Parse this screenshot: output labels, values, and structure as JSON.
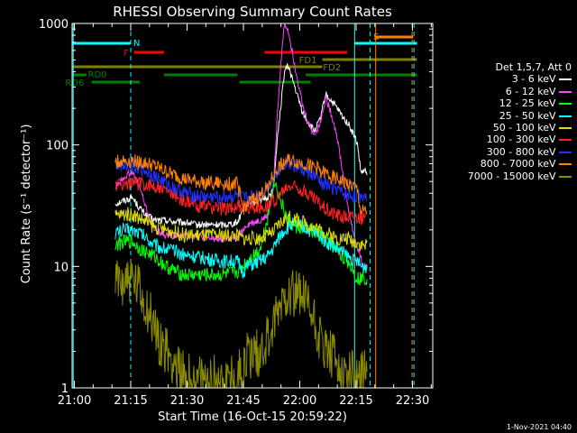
{
  "chart_data": {
    "type": "line",
    "title": "RHESSI Observing Summary Count Rates",
    "xlabel": "Start Time (16-Oct-15 20:59:22)",
    "ylabel": "Count Rate (s⁻¹ detector⁻¹)",
    "yscale": "log",
    "ylim": [
      1,
      1000
    ],
    "xlim_minutes": [
      0,
      96
    ],
    "y_ticks": [
      "1",
      "10",
      "100",
      "1000"
    ],
    "x_ticks": [
      {
        "label": "21:00",
        "t": 0.6
      },
      {
        "label": "21:15",
        "t": 15.6
      },
      {
        "label": "21:30",
        "t": 30.6
      },
      {
        "label": "21:45",
        "t": 45.6
      },
      {
        "label": "22:00",
        "t": 60.6
      },
      {
        "label": "22:15",
        "t": 75.6
      },
      {
        "label": "22:30",
        "t": 90.6
      }
    ],
    "legend_header": "Det 1,5,7, Att 0",
    "data_window": [
      11.5,
      78.5
    ],
    "series": [
      {
        "name": "3 - 6 keV",
        "color": "#ffffff",
        "x": [
          11.5,
          14,
          16,
          18,
          20,
          22,
          25,
          28,
          30,
          33,
          36,
          40,
          44,
          45.5,
          46.5,
          50,
          52,
          53.5,
          54.5,
          55.5,
          56.5,
          57.5,
          58.5,
          60,
          61.5,
          63,
          64.5,
          66,
          67.5,
          69,
          70.5,
          72,
          73.5,
          75,
          76,
          76.8,
          77.5,
          78.5
        ],
        "y": [
          33,
          35,
          37,
          30,
          26,
          24,
          24,
          23,
          23,
          22,
          22,
          22,
          23,
          30,
          33,
          35,
          37,
          42,
          100,
          200,
          400,
          450,
          360,
          250,
          180,
          150,
          130,
          160,
          260,
          230,
          200,
          170,
          150,
          120,
          100,
          60,
          60,
          60
        ]
      },
      {
        "name": "6 - 12 keV",
        "color": "#ff44ff",
        "x": [
          11.5,
          14,
          16,
          18,
          20,
          22,
          25,
          28,
          30,
          33,
          36,
          40,
          44,
          45.5,
          46.5,
          50,
          52,
          53.5,
          54.5,
          55.5,
          56.5,
          57.5,
          58.5,
          60,
          61.5,
          63,
          64.5,
          66,
          67.5,
          69,
          70.5,
          72,
          73.5,
          75,
          76,
          76.8,
          77.5,
          78.5
        ],
        "y": [
          45,
          55,
          60,
          45,
          28,
          20,
          18,
          18,
          18,
          18,
          17,
          17,
          17,
          20,
          22,
          24,
          26,
          40,
          150,
          450,
          1000,
          900,
          600,
          350,
          200,
          150,
          120,
          150,
          250,
          180,
          120,
          60,
          30,
          18,
          14,
          12,
          10,
          10
        ]
      },
      {
        "name": "12 - 25 keV",
        "color": "#00ff00",
        "x": [
          11.5,
          14,
          16,
          18,
          20,
          22,
          25,
          28,
          30,
          33,
          36,
          40,
          44,
          45.5,
          46.5,
          50,
          52,
          53.5,
          54.5,
          55.5,
          56.5,
          57.5,
          58.5,
          60,
          61.5,
          63,
          64.5,
          66,
          67.5,
          69,
          70.5,
          72,
          73.5,
          75,
          76,
          76.8,
          77.5,
          78.5
        ],
        "y": [
          15,
          16,
          16,
          14,
          13,
          12,
          10,
          9,
          8.5,
          8.5,
          8.5,
          8.5,
          9,
          10,
          11,
          14,
          25,
          50,
          45,
          35,
          28,
          24,
          22,
          21,
          20,
          20,
          19,
          18,
          17,
          15,
          14,
          12,
          11,
          9,
          8,
          8,
          8,
          8
        ]
      },
      {
        "name": "25 - 50 keV",
        "color": "#00ffff",
        "x": [
          11.5,
          14,
          16,
          18,
          20,
          22,
          25,
          28,
          30,
          33,
          36,
          40,
          44,
          45.5,
          46.5,
          50,
          52,
          53.5,
          54.5,
          55.5,
          56.5,
          57.5,
          58.5,
          60,
          61.5,
          63,
          64.5,
          66,
          67.5,
          69,
          70.5,
          72,
          73.5,
          75,
          76,
          76.8,
          77.5,
          78.5
        ],
        "y": [
          19,
          20,
          20,
          19,
          17,
          15,
          14,
          13,
          12.5,
          12,
          11.5,
          11,
          11,
          9,
          10,
          11,
          12,
          14,
          16,
          18,
          20,
          21,
          22,
          22,
          21,
          20,
          19,
          18,
          16,
          15,
          14,
          13,
          12,
          11,
          11,
          10,
          10,
          10
        ]
      },
      {
        "name": "50 - 100 keV",
        "color": "#dddd00",
        "x": [
          11.5,
          14,
          16,
          18,
          20,
          22,
          25,
          28,
          30,
          33,
          36,
          40,
          44,
          45.5,
          46.5,
          50,
          52,
          53.5,
          54.5,
          55.5,
          56.5,
          57.5,
          58.5,
          60,
          61.5,
          63,
          64.5,
          66,
          67.5,
          69,
          70.5,
          72,
          73.5,
          75,
          76,
          76.8,
          77.5,
          78.5
        ],
        "y": [
          26,
          27,
          27,
          25,
          23,
          21,
          20,
          19,
          18,
          18,
          18,
          18,
          18,
          17,
          17,
          17,
          18,
          19,
          21,
          23,
          24,
          25,
          25,
          24,
          23,
          22,
          21,
          20,
          19,
          18,
          17,
          17,
          17,
          16,
          16,
          15,
          15,
          15
        ]
      },
      {
        "name": "100 - 300 keV",
        "color": "#ff2020",
        "x": [
          11.5,
          14,
          16,
          18,
          20,
          22,
          25,
          28,
          30,
          33,
          36,
          40,
          44,
          45.5,
          46.5,
          50,
          52,
          53.5,
          54.5,
          55.5,
          56.5,
          57.5,
          58.5,
          60,
          61.5,
          63,
          64.5,
          66,
          67.5,
          69,
          70.5,
          72,
          73.5,
          75,
          76,
          76.8,
          77.5,
          78.5
        ],
        "y": [
          47,
          48,
          48,
          48,
          47,
          46,
          42,
          38,
          34,
          32,
          31,
          30,
          31,
          31,
          31,
          31,
          32,
          34,
          36,
          39,
          42,
          45,
          46,
          45,
          42,
          39,
          36,
          33,
          30,
          28,
          27,
          26,
          26,
          26,
          26,
          25,
          25,
          25
        ]
      },
      {
        "name": "300 - 800 keV",
        "color": "#2030ff",
        "x": [
          11.5,
          14,
          16,
          18,
          20,
          22,
          25,
          28,
          30,
          33,
          36,
          40,
          44,
          45.5,
          46.5,
          50,
          52,
          53.5,
          54.5,
          55.5,
          56.5,
          57.5,
          58.5,
          60,
          61.5,
          63,
          64.5,
          66,
          67.5,
          69,
          70.5,
          72,
          73.5,
          75,
          76,
          76.8,
          77.5,
          78.5
        ],
        "y": [
          68,
          70,
          70,
          65,
          60,
          55,
          48,
          43,
          40,
          38,
          37,
          37,
          38,
          36,
          36,
          40,
          45,
          53,
          60,
          66,
          70,
          71,
          70,
          66,
          62,
          58,
          55,
          50,
          47,
          45,
          43,
          40,
          38,
          38,
          38,
          38,
          38,
          38
        ]
      },
      {
        "name": "800 - 7000 keV",
        "color": "#ff8000",
        "x": [
          11.5,
          14,
          16,
          18,
          20,
          22,
          25,
          28,
          30,
          33,
          36,
          40,
          44,
          45.5,
          46.5,
          50,
          52,
          53.5,
          54.5,
          55.5,
          56.5,
          57.5,
          58.5,
          60,
          61.5,
          63,
          64.5,
          66,
          67.5,
          69,
          70.5,
          72,
          73.5,
          75,
          76,
          76.8,
          77.5,
          78.5
        ],
        "y": [
          72,
          74,
          74,
          72,
          70,
          67,
          60,
          55,
          52,
          50,
          49,
          48,
          48,
          30,
          33,
          38,
          45,
          55,
          62,
          68,
          72,
          74,
          74,
          72,
          70,
          68,
          66,
          62,
          58,
          55,
          52,
          50,
          48,
          45,
          42,
          28,
          28,
          28
        ]
      },
      {
        "name": "7000 - 15000 keV",
        "color": "#8c8c00",
        "x": [
          11.5,
          14,
          16,
          18,
          20,
          22,
          25,
          28,
          30,
          33,
          36,
          40,
          44,
          45.5,
          46.5,
          50,
          52,
          53.5,
          54.5,
          55.5,
          56.5,
          57.5,
          58.5,
          60,
          61.5,
          63,
          64.5,
          66,
          67.5,
          69,
          70.5,
          72,
          73.5,
          75,
          76,
          76.8,
          77.5,
          78.5
        ],
        "y": [
          7,
          8,
          7.5,
          6,
          4.5,
          3,
          2,
          1.5,
          1.2,
          1.1,
          1.1,
          1.2,
          1.2,
          1.5,
          1.8,
          2,
          2.5,
          3,
          4,
          5,
          6,
          6.5,
          6.5,
          6,
          5.5,
          4.5,
          3.5,
          2.5,
          2,
          1.8,
          1.5,
          1.5,
          1.3,
          1.3,
          1.3,
          1.3,
          1.3,
          1.3
        ]
      }
    ],
    "state_bars": [
      {
        "label": "N",
        "color": "#00ffff",
        "segments": [
          [
            0,
            15.5
          ],
          [
            75.2,
            91.8
          ]
        ]
      },
      {
        "label": "F",
        "color": "#ff0000",
        "segments": [
          [
            16.5,
            24.5
          ],
          [
            51.2,
            73.2
          ]
        ]
      },
      {
        "label": "S",
        "color": "#ff8000",
        "segments": [
          [
            80.5,
            90.8
          ]
        ]
      },
      {
        "label": "FD1",
        "color": "#808000",
        "segments": [
          [
            66.6,
            91.8
          ]
        ]
      },
      {
        "label": "FD2",
        "color": "#808000",
        "segments": [
          [
            0,
            66.6
          ]
        ]
      },
      {
        "label": "RD0",
        "color": "#008000",
        "segments": [
          [
            0,
            3.8
          ],
          [
            24.5,
            44
          ],
          [
            62.2,
            91.8
          ]
        ]
      },
      {
        "label": "RD6",
        "color": "#008000",
        "segments": [
          [
            5.2,
            18
          ],
          [
            44.5,
            63.5
          ]
        ]
      }
    ],
    "vertical_markers": [
      {
        "t": 0.3,
        "color": "#00ffff",
        "style": "solid"
      },
      {
        "t": 15.6,
        "color": "#00ffff",
        "style": "dash"
      },
      {
        "t": 75.2,
        "color": "#00ffff",
        "style": "solid"
      },
      {
        "t": 79.3,
        "color": "#00ffff",
        "style": "dash"
      },
      {
        "t": 80.8,
        "color": "#ff8000",
        "style": "solid"
      },
      {
        "t": 90.5,
        "color": "#ff8000",
        "style": "dash"
      },
      {
        "t": 91.0,
        "color": "#00ffff",
        "style": "dash"
      }
    ]
  },
  "timestamp": "1-Nov-2021 04:40"
}
